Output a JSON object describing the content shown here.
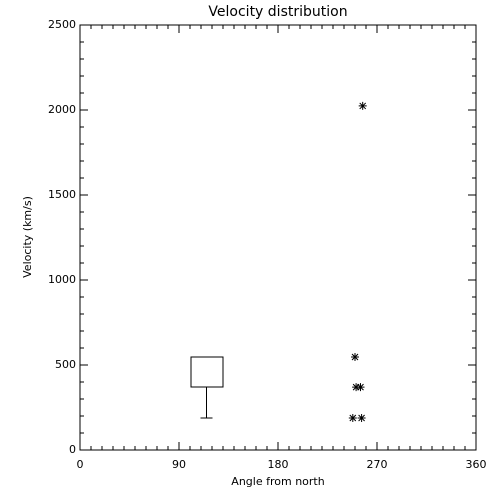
{
  "chart_data": {
    "type": "box-scatter",
    "title": "Velocity distribution",
    "x_label": "Angle from north",
    "y_label": "Velocity (km/s)",
    "xlim": [
      0,
      360
    ],
    "xticks": [
      0,
      90,
      180,
      270,
      360
    ],
    "ylim": [
      0,
      2500
    ],
    "yticks": [
      0,
      500,
      1000,
      1500,
      2000,
      2500
    ],
    "boxes": [
      {
        "x": 115,
        "x_left": 101,
        "x_right": 130,
        "min": 188,
        "q1": 370,
        "q3": 547
      }
    ],
    "points": {
      "x": [
        257,
        250,
        251,
        255,
        248,
        256
      ],
      "y": [
        2024,
        547,
        370,
        370,
        188,
        188
      ]
    }
  }
}
